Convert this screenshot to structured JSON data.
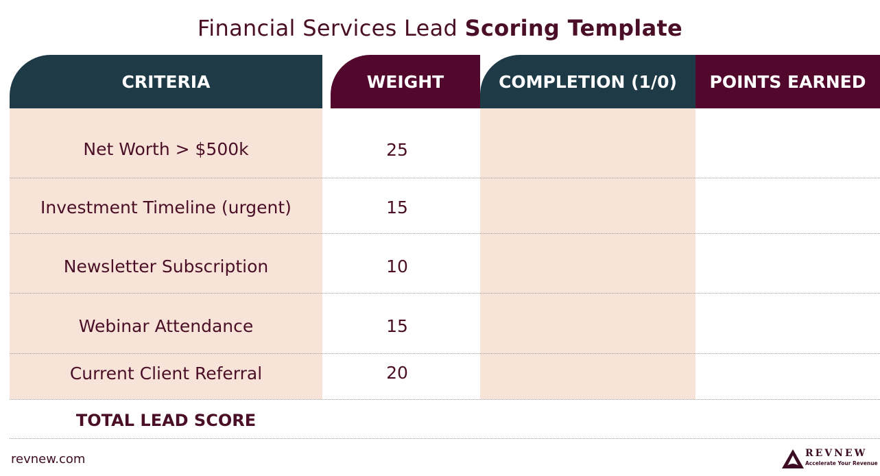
{
  "title": {
    "regular": "Financial Services Lead",
    "bold": "Scoring Template"
  },
  "headers": {
    "criteria": "CRITERIA",
    "weight": "WEIGHT",
    "completion": "COMPLETION (1/0)",
    "points": "POINTS EARNED"
  },
  "rows": [
    {
      "criteria": "Net Worth > $500k",
      "weight": "25"
    },
    {
      "criteria": "Investment Timeline (urgent)",
      "weight": "15"
    },
    {
      "criteria": "Newsletter Subscription",
      "weight": "10"
    },
    {
      "criteria": "Webinar Attendance",
      "weight": "15"
    },
    {
      "criteria": "Current Client Referral",
      "weight": "20"
    }
  ],
  "total_label": "TOTAL LEAD SCORE",
  "footer": {
    "site": "revnew.com",
    "logo_name": "REVNEW",
    "logo_tagline": "Accelerate Your Revenue"
  },
  "colors": {
    "teal": "#1d3a46",
    "maroon": "#52082c",
    "peach": "#f7e3d8",
    "text": "#4a0f26"
  }
}
